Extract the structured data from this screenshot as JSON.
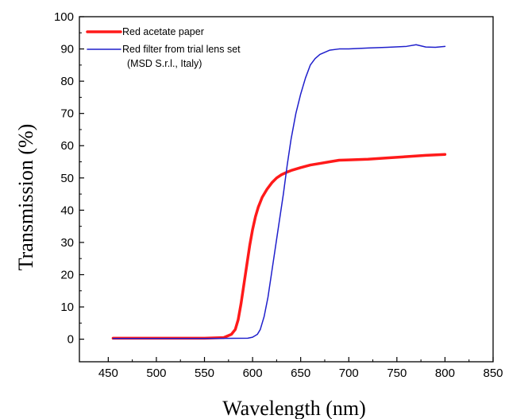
{
  "chart_data": {
    "type": "line",
    "title": "",
    "xlabel": "Wavelength (nm)",
    "ylabel": "Transmission (%)",
    "xlim": [
      420,
      850
    ],
    "ylim": [
      -7,
      100
    ],
    "xticks": [
      450,
      500,
      550,
      600,
      650,
      700,
      750,
      800,
      850
    ],
    "yticks": [
      0,
      10,
      20,
      30,
      40,
      50,
      60,
      70,
      80,
      90,
      100
    ],
    "grid": false,
    "legend_position": "top-left",
    "series": [
      {
        "name": "Red acetate paper",
        "color": "#ff1a1a",
        "line_width": 3.5,
        "x": [
          455,
          500,
          550,
          570,
          578,
          582,
          585,
          588,
          591,
          594,
          597,
          600,
          603,
          606,
          610,
          615,
          620,
          625,
          630,
          635,
          640,
          650,
          660,
          670,
          680,
          690,
          700,
          720,
          740,
          760,
          780,
          800
        ],
        "y": [
          0.3,
          0.3,
          0.3,
          0.5,
          1.5,
          3,
          6,
          11,
          17,
          23,
          29,
          34,
          38,
          41,
          44,
          46.5,
          48.5,
          50,
          51,
          51.7,
          52.3,
          53.2,
          54,
          54.5,
          55,
          55.5,
          55.6,
          55.8,
          56.2,
          56.6,
          57,
          57.3
        ]
      },
      {
        "name": "Red filter from trial lens set\n(MSD S.r.l., Italy)",
        "color": "#1f1fcc",
        "line_width": 1.5,
        "x": [
          455,
          500,
          550,
          595,
          600,
          605,
          608,
          612,
          616,
          620,
          624,
          628,
          632,
          636,
          640,
          645,
          650,
          655,
          660,
          665,
          670,
          680,
          690,
          700,
          720,
          740,
          760,
          770,
          780,
          790,
          800
        ],
        "y": [
          0.2,
          0.2,
          0.2,
          0.3,
          0.6,
          1.5,
          3,
          7,
          13,
          21,
          29,
          37,
          45,
          54,
          62,
          70,
          76,
          81,
          85,
          87,
          88.3,
          89.6,
          90,
          90,
          90.3,
          90.5,
          90.8,
          91.3,
          90.6,
          90.5,
          90.8
        ]
      }
    ]
  }
}
